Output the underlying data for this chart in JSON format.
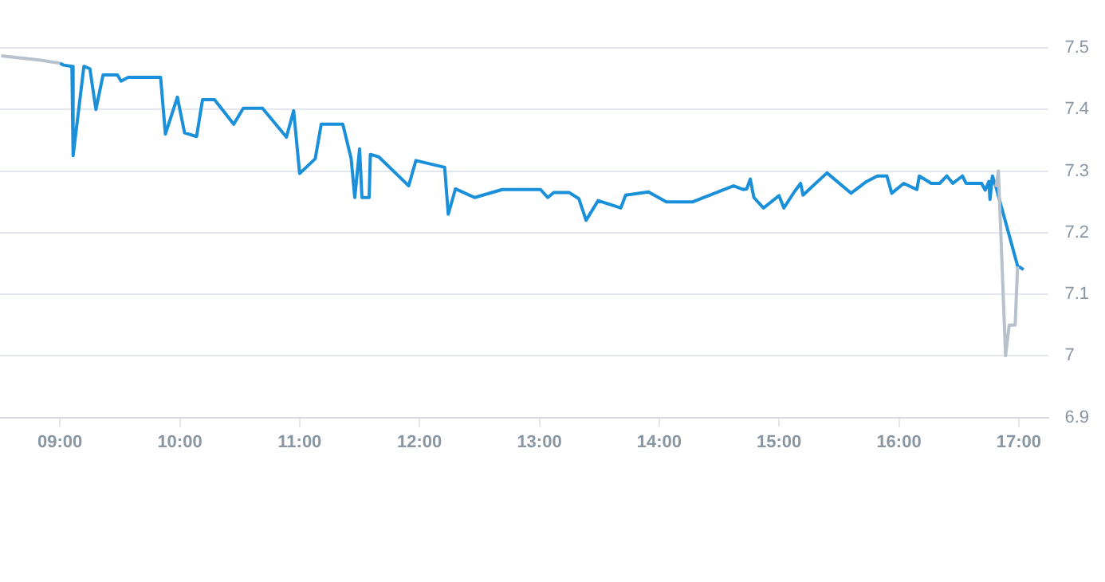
{
  "chart_data": {
    "type": "line",
    "xlim": [
      8.5,
      17.25
    ],
    "xticks": [
      {
        "value": 9,
        "label": "09:00"
      },
      {
        "value": 10,
        "label": "10:00"
      },
      {
        "value": 11,
        "label": "11:00"
      },
      {
        "value": 12,
        "label": "12:00"
      },
      {
        "value": 13,
        "label": "13:00"
      },
      {
        "value": 14,
        "label": "14:00"
      },
      {
        "value": 15,
        "label": "15:00"
      },
      {
        "value": 16,
        "label": "16:00"
      },
      {
        "value": 17,
        "label": "17:00"
      }
    ],
    "ylim": [
      6.9,
      7.5
    ],
    "yticks": [
      6.9,
      7,
      7.1,
      7.2,
      7.3,
      7.4,
      7.5
    ],
    "grid": "y",
    "marker": "none",
    "legend": false,
    "series": [
      {
        "color": "#b8c2cc",
        "x": [
          8.51,
          8.84,
          9.0
        ],
        "values": [
          7.487,
          7.48,
          7.475
        ]
      },
      {
        "color": "#b8c2cc",
        "x": [
          16.81,
          16.83,
          16.89,
          16.92,
          16.97,
          16.99
        ],
        "values": [
          7.274,
          7.3,
          7.0,
          7.05,
          7.05,
          7.145
        ]
      },
      {
        "color": "#1a90db",
        "x": [
          9.0,
          9.03,
          9.1,
          9.11,
          9.2,
          9.25,
          9.3,
          9.36,
          9.48,
          9.51,
          9.57,
          9.84,
          9.88,
          9.98,
          10.04,
          10.14,
          10.19,
          10.29,
          10.45,
          10.53,
          10.69,
          10.89,
          10.95,
          11.0,
          11.13,
          11.18,
          11.36,
          11.43,
          11.46,
          11.5,
          11.52,
          11.58,
          11.59,
          11.66,
          11.91,
          11.97,
          12.21,
          12.24,
          12.3,
          12.46,
          12.69,
          13.01,
          13.07,
          13.12,
          13.25,
          13.33,
          13.39,
          13.49,
          13.68,
          13.72,
          13.91,
          14.06,
          14.28,
          14.62,
          14.7,
          14.73,
          14.76,
          14.79,
          14.87,
          15.0,
          15.04,
          15.13,
          15.18,
          15.2,
          15.4,
          15.6,
          15.73,
          15.82,
          15.9,
          15.94,
          16.04,
          16.15,
          16.17,
          16.27,
          16.34,
          16.4,
          16.45,
          16.53,
          16.56,
          16.69,
          16.72,
          16.75,
          16.76,
          16.78,
          16.81,
          16.99,
          17.04
        ],
        "values": [
          7.475,
          7.472,
          7.47,
          7.325,
          7.47,
          7.466,
          7.4,
          7.456,
          7.456,
          7.446,
          7.452,
          7.452,
          7.36,
          7.42,
          7.362,
          7.356,
          7.416,
          7.416,
          7.376,
          7.402,
          7.402,
          7.355,
          7.398,
          7.296,
          7.32,
          7.376,
          7.376,
          7.32,
          7.257,
          7.336,
          7.257,
          7.257,
          7.327,
          7.323,
          7.276,
          7.317,
          7.306,
          7.23,
          7.271,
          7.257,
          7.27,
          7.27,
          7.257,
          7.265,
          7.265,
          7.255,
          7.22,
          7.252,
          7.24,
          7.261,
          7.266,
          7.25,
          7.25,
          7.276,
          7.27,
          7.271,
          7.287,
          7.257,
          7.24,
          7.26,
          7.24,
          7.267,
          7.28,
          7.261,
          7.297,
          7.264,
          7.283,
          7.292,
          7.292,
          7.264,
          7.28,
          7.27,
          7.292,
          7.28,
          7.28,
          7.292,
          7.28,
          7.292,
          7.28,
          7.28,
          7.269,
          7.283,
          7.254,
          7.292,
          7.274,
          7.146,
          7.14
        ]
      }
    ]
  }
}
